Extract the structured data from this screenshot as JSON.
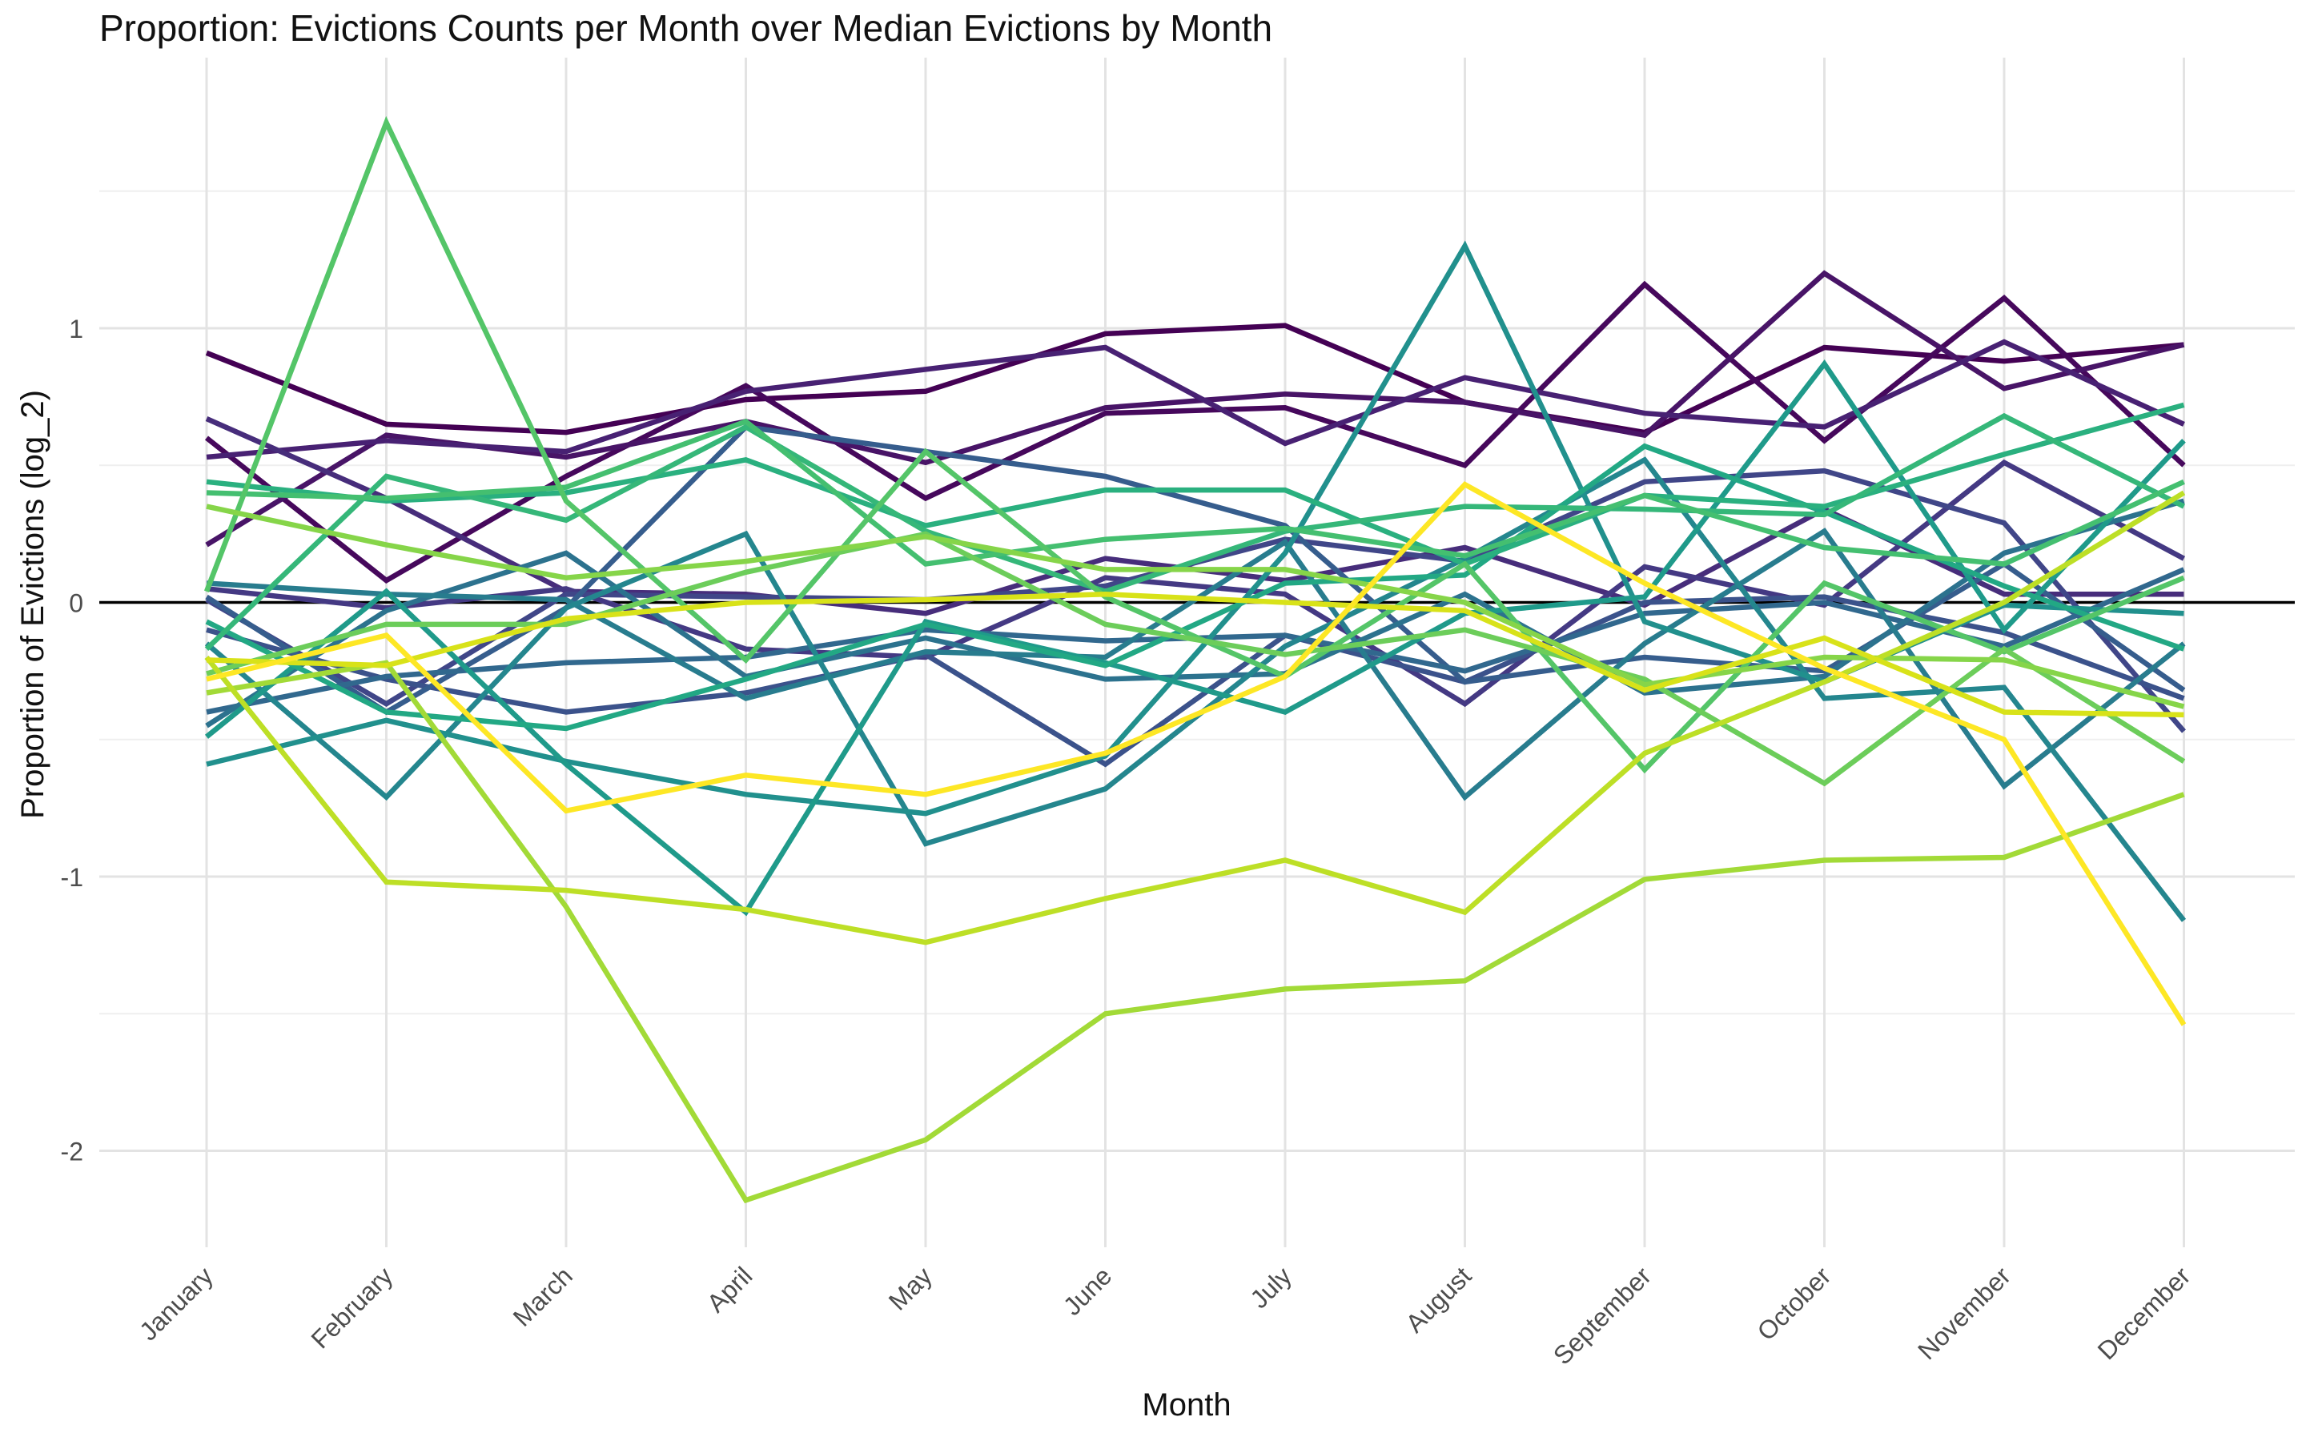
{
  "chart_data": {
    "type": "line",
    "title": "Proportion: Evictions Counts per Month over Median Evictions by Month",
    "xlabel": "Month",
    "ylabel": "Proportion of Evictions (log_2)",
    "categories": [
      "January",
      "February",
      "March",
      "April",
      "May",
      "June",
      "July",
      "August",
      "September",
      "October",
      "November",
      "December"
    ],
    "ylim": [
      -2.35,
      1.95
    ],
    "yticks": [
      -2,
      -1,
      0,
      1
    ],
    "yticklabels": [
      "-2",
      "-1",
      "0",
      "1"
    ],
    "reference_line": 0,
    "grid": true,
    "legend": "none",
    "series": [
      {
        "color": "#440154",
        "values": [
          0.91,
          0.65,
          0.62,
          0.74,
          0.77,
          0.98,
          1.01,
          0.73,
          0.62,
          0.93,
          0.88,
          0.94
        ]
      },
      {
        "color": "#46085c",
        "values": [
          0.6,
          0.08,
          0.46,
          0.79,
          0.38,
          0.69,
          0.71,
          0.5,
          1.16,
          0.59,
          1.11,
          0.5
        ]
      },
      {
        "color": "#481467",
        "values": [
          0.21,
          0.61,
          0.53,
          0.66,
          0.51,
          0.71,
          0.76,
          0.73,
          0.61,
          1.2,
          0.78,
          0.94
        ]
      },
      {
        "color": "#482173",
        "values": [
          0.53,
          0.59,
          0.55,
          0.77,
          0.85,
          0.93,
          0.58,
          0.82,
          0.69,
          0.64,
          0.95,
          0.65
        ]
      },
      {
        "color": "#472d7b",
        "values": [
          0.67,
          0.38,
          0.04,
          0.03,
          -0.04,
          0.16,
          0.08,
          0.2,
          -0.01,
          0.34,
          0.03,
          0.03
        ]
      },
      {
        "color": "#443983",
        "values": [
          0.05,
          -0.02,
          0.05,
          -0.17,
          -0.2,
          0.09,
          0.03,
          -0.37,
          0.13,
          -0.01,
          0.51,
          0.16
        ]
      },
      {
        "color": "#404688",
        "values": [
          0.01,
          -0.37,
          0.03,
          0.02,
          0.01,
          0.06,
          0.23,
          0.15,
          0.44,
          0.48,
          0.29,
          -0.47
        ]
      },
      {
        "color": "#3b528b",
        "values": [
          -0.1,
          -0.28,
          -0.4,
          -0.33,
          -0.19,
          -0.59,
          -0.12,
          -0.29,
          0.0,
          0.02,
          -0.11,
          -0.35
        ]
      },
      {
        "color": "#365d8d",
        "values": [
          0.02,
          -0.4,
          -0.02,
          0.64,
          0.55,
          0.46,
          0.28,
          -0.29,
          -0.2,
          -0.25,
          0.14,
          -0.32
        ]
      },
      {
        "color": "#31688e",
        "values": [
          -0.4,
          -0.27,
          -0.22,
          -0.2,
          -0.1,
          -0.14,
          -0.12,
          -0.25,
          -0.04,
          0.0,
          -0.16,
          0.12
        ]
      },
      {
        "color": "#2c728e",
        "values": [
          -0.45,
          -0.03,
          0.18,
          -0.27,
          -0.13,
          -0.28,
          -0.26,
          0.03,
          -0.33,
          -0.27,
          0.18,
          0.37
        ]
      },
      {
        "color": "#287c8e",
        "values": [
          0.07,
          0.03,
          0.01,
          -0.35,
          -0.18,
          -0.2,
          0.22,
          -0.71,
          -0.15,
          0.26,
          -0.67,
          -0.15
        ]
      },
      {
        "color": "#24868e",
        "values": [
          -0.15,
          -0.71,
          -0.02,
          0.25,
          -0.88,
          -0.68,
          -0.16,
          0.16,
          0.52,
          -0.35,
          -0.31,
          -1.16
        ]
      },
      {
        "color": "#21908d",
        "values": [
          -0.59,
          -0.43,
          -0.58,
          -0.7,
          -0.77,
          -0.56,
          0.18,
          1.3,
          -0.07,
          -0.29,
          -0.01,
          -0.04
        ]
      },
      {
        "color": "#1f9a8a",
        "values": [
          -0.49,
          0.04,
          -0.59,
          -1.13,
          -0.07,
          -0.22,
          -0.4,
          -0.04,
          0.02,
          0.87,
          -0.1,
          0.59
        ]
      },
      {
        "color": "#22a884",
        "values": [
          -0.07,
          -0.4,
          -0.46,
          -0.28,
          -0.08,
          -0.23,
          0.07,
          0.1,
          0.57,
          0.33,
          0.06,
          -0.17
        ]
      },
      {
        "color": "#2ab07f",
        "values": [
          0.44,
          0.37,
          0.4,
          0.52,
          0.28,
          0.41,
          0.41,
          0.14,
          0.39,
          0.35,
          0.54,
          0.72
        ]
      },
      {
        "color": "#35b779",
        "values": [
          -0.17,
          0.46,
          0.3,
          0.64,
          0.26,
          0.04,
          0.26,
          0.35,
          0.34,
          0.32,
          0.68,
          0.35
        ]
      },
      {
        "color": "#44bf70",
        "values": [
          0.4,
          0.38,
          0.42,
          0.66,
          0.14,
          0.23,
          0.27,
          0.17,
          0.39,
          0.2,
          0.14,
          0.44
        ]
      },
      {
        "color": "#54c568",
        "values": [
          0.04,
          1.75,
          0.37,
          -0.21,
          0.55,
          0.02,
          -0.27,
          0.14,
          -0.61,
          0.07,
          -0.18,
          0.09
        ]
      },
      {
        "color": "#6ccd5a",
        "values": [
          -0.26,
          -0.08,
          -0.08,
          0.11,
          0.25,
          -0.08,
          -0.19,
          -0.1,
          -0.28,
          -0.66,
          -0.17,
          -0.58
        ]
      },
      {
        "color": "#86d549",
        "values": [
          0.35,
          0.21,
          0.09,
          0.15,
          0.24,
          0.12,
          0.12,
          0.0,
          -0.3,
          -0.2,
          -0.21,
          -0.38
        ]
      },
      {
        "color": "#a2da37",
        "values": [
          -0.33,
          -0.22,
          -1.11,
          -2.18,
          -1.96,
          -1.5,
          -1.41,
          -1.38,
          -1.01,
          -0.94,
          -0.93,
          -0.7
        ]
      },
      {
        "color": "#bddf26",
        "values": [
          -0.2,
          -1.02,
          -1.05,
          -1.12,
          -1.24,
          -1.08,
          -0.94,
          -1.13,
          -0.55,
          -0.29,
          0.0,
          0.4
        ]
      },
      {
        "color": "#d8e219",
        "values": [
          -0.21,
          -0.23,
          -0.06,
          0.0,
          0.01,
          0.03,
          0.0,
          -0.03,
          -0.32,
          -0.13,
          -0.4,
          -0.41
        ]
      },
      {
        "color": "#fde725",
        "values": [
          -0.28,
          -0.12,
          -0.76,
          -0.63,
          -0.7,
          -0.55,
          -0.27,
          0.43,
          0.07,
          -0.24,
          -0.5,
          -1.54
        ]
      }
    ]
  }
}
